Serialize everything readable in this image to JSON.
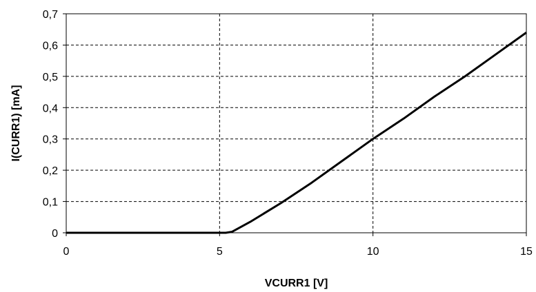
{
  "chart_data": {
    "type": "line",
    "xlabel": "VCURR1 [V]",
    "ylabel": "I(CURR1) [mA]",
    "xlim": [
      0,
      15
    ],
    "ylim": [
      0,
      0.7
    ],
    "x_ticks": [
      0,
      5,
      10,
      15
    ],
    "y_ticks": [
      0,
      0.1,
      0.2,
      0.3,
      0.4,
      0.5,
      0.6,
      0.7
    ],
    "x_tick_labels": [
      "0",
      "5",
      "10",
      "15"
    ],
    "y_tick_labels": [
      "0",
      "0,1",
      "0,2",
      "0,3",
      "0,4",
      "0,5",
      "0,6",
      "0,7"
    ],
    "grid": true,
    "legend": "none",
    "series": [
      {
        "color": "#000000",
        "x": [
          0,
          5.2,
          5.4,
          6,
          7,
          8,
          9,
          10,
          11,
          12,
          13,
          14,
          15
        ],
        "y": [
          0,
          0,
          0.003,
          0.035,
          0.095,
          0.16,
          0.23,
          0.3,
          0.365,
          0.435,
          0.5,
          0.57,
          0.64
        ]
      }
    ]
  }
}
